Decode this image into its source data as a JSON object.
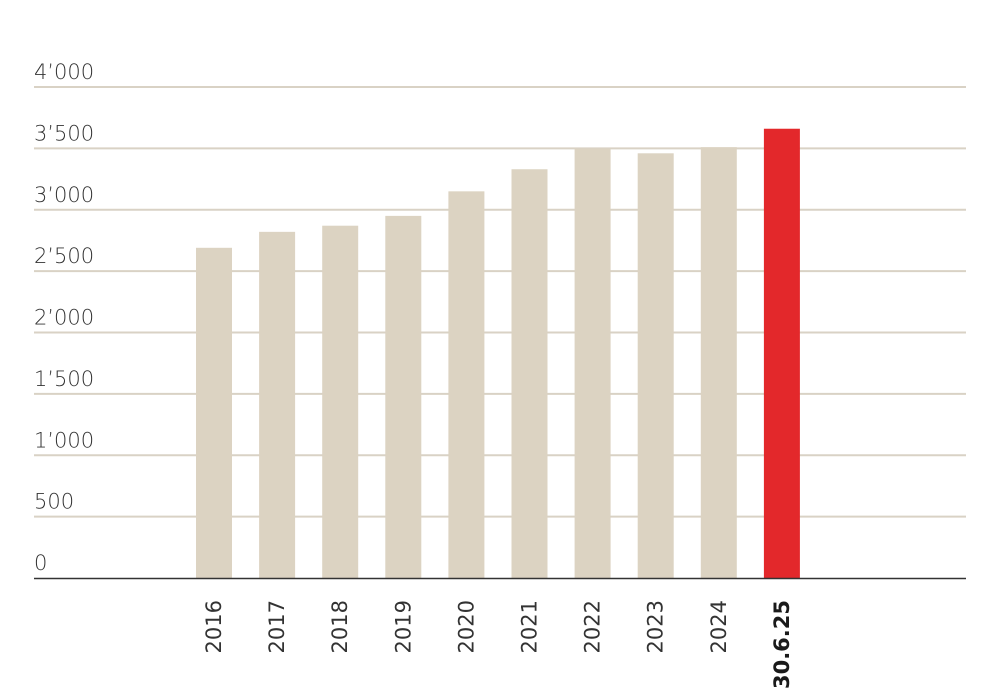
{
  "chart_data": {
    "type": "bar",
    "title": "",
    "xlabel": "",
    "ylabel": "",
    "categories": [
      "2016",
      "2017",
      "2018",
      "2019",
      "2020",
      "2021",
      "2022",
      "2023",
      "2024",
      "30.6.25"
    ],
    "values": [
      2690,
      2820,
      2870,
      2950,
      3150,
      3330,
      3500,
      3460,
      3510,
      3660
    ],
    "highlight_index": 9,
    "ylim": [
      0,
      4000
    ],
    "yticks": [
      0,
      500,
      1000,
      1500,
      2000,
      2500,
      3000,
      3500,
      4000
    ],
    "ytick_labels": [
      "0",
      "500",
      "1’000",
      "1’500",
      "2’000",
      "2’500",
      "3’000",
      "3’500",
      "4’000"
    ],
    "grid": true,
    "legend": "none",
    "colors": {
      "bar": "#dcd3c2",
      "highlight": "#e3282b",
      "grid": "#d9d2c5",
      "axis": "#333333",
      "text": "#333333"
    }
  }
}
